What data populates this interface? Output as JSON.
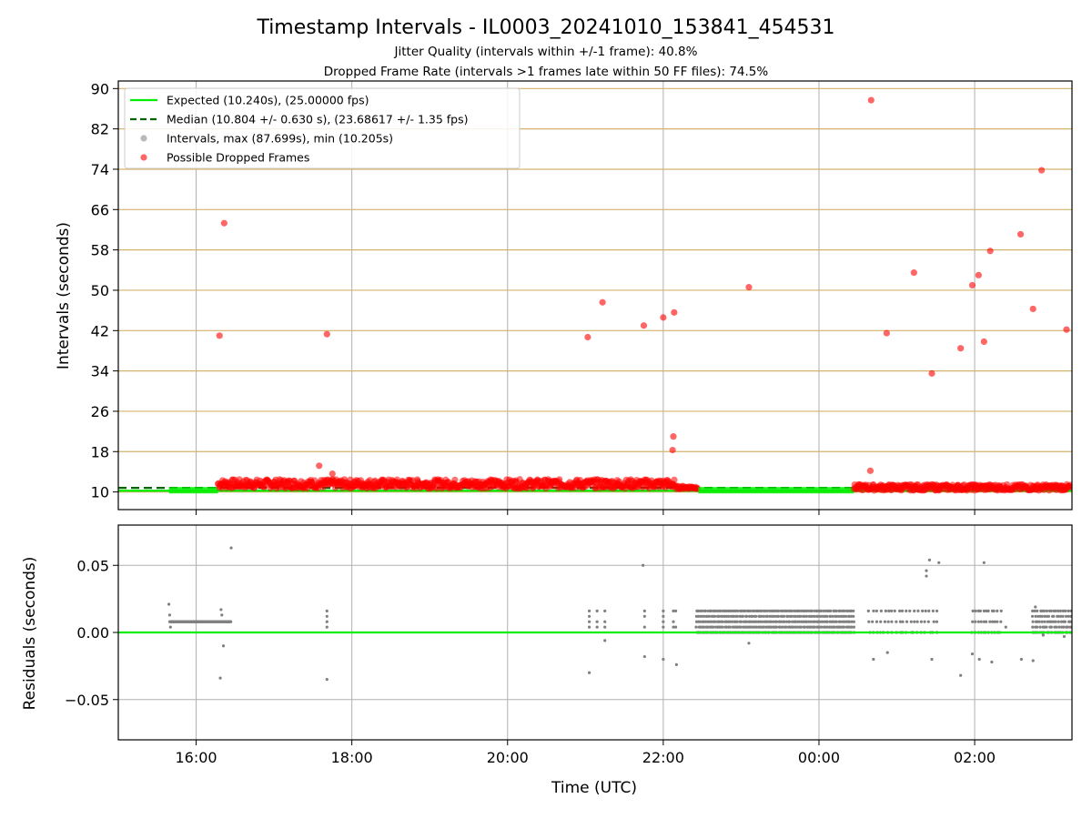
{
  "header": {
    "title": "Timestamp Intervals - IL0003_20241010_153841_454531",
    "subtitle_1": "Jitter Quality (intervals within +/-1 frame): 40.8%",
    "subtitle_2": "Dropped Frame Rate (intervals >1 frames late within 50 FF files): 74.5%"
  },
  "colors": {
    "expected": "#00ee00",
    "median": "#006400",
    "intervals": "#808080",
    "dropped": "#ff0000",
    "hgrid_top": "#d4b36a",
    "grid": "#b0b0b0"
  },
  "chart_data": [
    {
      "type": "scatter",
      "panel": "intervals",
      "ylabel": "Intervals (seconds)",
      "xlabel": "",
      "x_unit": "hours since 00:00 UTC (day boundary between 23:00 and 00:00)",
      "xlim": [
        15.0,
        27.25
      ],
      "ylim": [
        6.5,
        91.5
      ],
      "y_ticks": [
        10,
        18,
        26,
        34,
        42,
        50,
        58,
        66,
        74,
        82,
        90
      ],
      "x_ticks": [
        {
          "value": 16,
          "label": "16:00"
        },
        {
          "value": 18,
          "label": "18:00"
        },
        {
          "value": 20,
          "label": "20:00"
        },
        {
          "value": 22,
          "label": "22:00"
        },
        {
          "value": 24,
          "label": "00:00"
        },
        {
          "value": 26,
          "label": "02:00"
        }
      ],
      "legend": {
        "placement": "top-left",
        "entries": [
          "Expected (10.240s), (25.00000 fps)",
          "Median (10.804 +/- 0.630 s), (23.68617 +/- 1.35 fps)",
          "Intervals, max (87.699s), min (10.205s)",
          "Possible Dropped Frames"
        ]
      },
      "expected_interval": 10.24,
      "median_interval": 10.804,
      "max_interval": 87.699,
      "min_interval": 10.205,
      "dense_bands": [
        {
          "x_start": 15.65,
          "x_end": 16.28,
          "y": 10.25,
          "color": "expected"
        },
        {
          "x_start": 16.28,
          "x_end": 22.15,
          "y": 11.6,
          "jitter": 0.9,
          "color": "dropped"
        },
        {
          "x_start": 22.15,
          "x_end": 22.45,
          "y": 10.9,
          "jitter": 0.3,
          "color": "dropped"
        },
        {
          "x_start": 22.45,
          "x_end": 24.45,
          "y": 10.25,
          "color": "expected"
        },
        {
          "x_start": 24.45,
          "x_end": 27.25,
          "y": 10.9,
          "jitter": 0.6,
          "color": "dropped"
        }
      ],
      "dropped_frames": [
        [
          16.3,
          41.0
        ],
        [
          16.36,
          63.3
        ],
        [
          17.58,
          15.2
        ],
        [
          17.68,
          41.3
        ],
        [
          17.75,
          13.6
        ],
        [
          21.03,
          40.7
        ],
        [
          21.22,
          47.6
        ],
        [
          21.75,
          43.0
        ],
        [
          22.0,
          44.6
        ],
        [
          22.14,
          45.6
        ],
        [
          22.13,
          21.0
        ],
        [
          22.12,
          18.3
        ],
        [
          23.1,
          50.6
        ],
        [
          24.67,
          87.7
        ],
        [
          24.66,
          14.2
        ],
        [
          24.87,
          41.5
        ],
        [
          25.22,
          53.5
        ],
        [
          25.45,
          33.5
        ],
        [
          25.82,
          38.5
        ],
        [
          25.97,
          51.0
        ],
        [
          26.05,
          53.0
        ],
        [
          26.12,
          39.8
        ],
        [
          26.2,
          57.8
        ],
        [
          26.59,
          61.1
        ],
        [
          26.75,
          46.3
        ],
        [
          26.86,
          73.8
        ],
        [
          27.18,
          42.2
        ]
      ]
    },
    {
      "type": "scatter",
      "panel": "residuals",
      "ylabel": "Residuals (seconds)",
      "xlabel": "Time (UTC)",
      "xlim": [
        15.0,
        27.25
      ],
      "ylim": [
        -0.08,
        0.08
      ],
      "y_ticks": [
        {
          "value": 0.05,
          "label": "0.05"
        },
        {
          "value": 0.0,
          "label": "0.00"
        },
        {
          "value": -0.05,
          "label": "−0.05"
        }
      ],
      "zero_line": 0.0,
      "dense_bands": [
        {
          "x_start": 15.66,
          "x_end": 16.45,
          "levels": [
            0.008
          ],
          "step": 0.01
        },
        {
          "x_start": 22.43,
          "x_end": 24.45,
          "levels": [
            0.0,
            0.004,
            0.008,
            0.012,
            0.016
          ],
          "step": 0.04
        },
        {
          "x_start": 24.65,
          "x_end": 25.55,
          "levels": [
            0.0,
            0.008,
            0.016
          ],
          "step": 0.08
        },
        {
          "x_start": 25.97,
          "x_end": 26.35,
          "levels": [
            0.0,
            0.008,
            0.016
          ],
          "step": 0.06
        },
        {
          "x_start": 26.75,
          "x_end": 27.25,
          "levels": [
            0.0,
            0.004,
            0.008,
            0.012,
            0.016
          ],
          "step": 0.05
        }
      ],
      "points": [
        [
          15.65,
          0.021
        ],
        [
          15.66,
          0.013
        ],
        [
          15.67,
          0.004
        ],
        [
          16.32,
          0.017
        ],
        [
          16.33,
          0.013
        ],
        [
          16.45,
          0.063
        ],
        [
          16.35,
          -0.01
        ],
        [
          16.31,
          -0.034
        ],
        [
          17.68,
          0.016
        ],
        [
          17.68,
          0.012
        ],
        [
          17.68,
          0.008
        ],
        [
          17.68,
          0.004
        ],
        [
          17.68,
          -0.035
        ],
        [
          21.05,
          0.016
        ],
        [
          21.05,
          0.012
        ],
        [
          21.05,
          0.008
        ],
        [
          21.05,
          0.004
        ],
        [
          21.05,
          -0.03
        ],
        [
          21.15,
          0.016
        ],
        [
          21.15,
          0.008
        ],
        [
          21.15,
          0.004
        ],
        [
          21.25,
          0.016
        ],
        [
          21.25,
          0.008
        ],
        [
          21.25,
          0.004
        ],
        [
          21.25,
          -0.006
        ],
        [
          21.76,
          0.016
        ],
        [
          21.76,
          0.012
        ],
        [
          21.76,
          0.004
        ],
        [
          21.74,
          0.05
        ],
        [
          21.76,
          -0.018
        ],
        [
          22.0,
          0.016
        ],
        [
          22.0,
          0.012
        ],
        [
          22.0,
          0.008
        ],
        [
          22.0,
          0.004
        ],
        [
          22.0,
          -0.02
        ],
        [
          22.13,
          0.016
        ],
        [
          22.13,
          0.008
        ],
        [
          22.13,
          0.004
        ],
        [
          22.16,
          0.016
        ],
        [
          22.16,
          0.004
        ],
        [
          22.17,
          -0.024
        ],
        [
          23.1,
          -0.008
        ],
        [
          24.7,
          -0.02
        ],
        [
          24.88,
          -0.015
        ],
        [
          25.38,
          0.042
        ],
        [
          25.38,
          0.046
        ],
        [
          25.42,
          0.054
        ],
        [
          25.54,
          0.052
        ],
        [
          25.45,
          -0.02
        ],
        [
          25.82,
          -0.032
        ],
        [
          25.97,
          -0.016
        ],
        [
          26.06,
          -0.02
        ],
        [
          26.12,
          0.052
        ],
        [
          26.22,
          -0.022
        ],
        [
          26.4,
          0.004
        ],
        [
          26.6,
          -0.02
        ],
        [
          26.75,
          -0.021
        ],
        [
          26.88,
          -0.002
        ],
        [
          27.15,
          -0.003
        ],
        [
          26.78,
          0.019
        ]
      ]
    }
  ]
}
